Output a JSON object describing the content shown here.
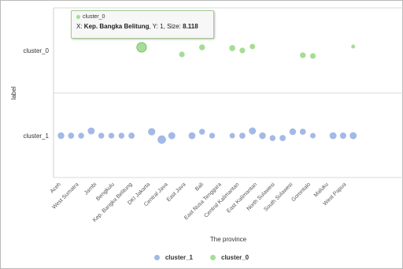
{
  "chart_data": {
    "type": "scatter",
    "xlabel": "The province",
    "ylabel": "label",
    "categories": [
      "Aceh",
      "West Sumatra",
      "Jambi",
      "Bengkulu",
      "Kep. Bangka Belitung",
      "DKI Jakarta",
      "Central Java",
      "East Java",
      "Bali",
      "East Nusa Tenggara",
      "Central Kalimantan",
      "East Kalimantan",
      "North Sulawesi",
      "South Sulawesi",
      "Gorontalo",
      "Maluku",
      "West Papua"
    ],
    "y_categories": [
      "cluster_1",
      "cluster_0"
    ],
    "series": [
      {
        "name": "cluster_1",
        "color": "#a3b9e6",
        "points": [
          [
            0,
            5.6
          ],
          [
            1,
            5.2
          ],
          [
            2,
            5.0
          ],
          [
            3,
            5.9
          ],
          [
            4,
            5.0
          ],
          [
            5,
            4.9
          ],
          [
            6,
            5.0
          ],
          [
            7,
            5.3
          ],
          [
            9,
            6.2
          ],
          [
            10,
            7.1
          ],
          [
            11,
            6.0
          ],
          [
            13,
            5.8
          ],
          [
            14,
            5.0
          ],
          [
            15,
            4.9
          ],
          [
            17,
            4.6
          ],
          [
            18,
            5.1
          ],
          [
            19,
            6.0
          ],
          [
            20,
            5.7
          ],
          [
            21,
            5.0
          ],
          [
            22,
            5.2
          ],
          [
            23,
            5.6
          ],
          [
            24,
            5.1
          ],
          [
            25,
            4.6
          ],
          [
            27,
            5.9
          ],
          [
            28,
            5.4
          ],
          [
            29,
            6.0
          ]
        ]
      },
      {
        "name": "cluster_0",
        "color": "#a5dd96",
        "points": [
          [
            8,
            8.118
          ],
          [
            12,
            4.8
          ],
          [
            14,
            5.0
          ],
          [
            17,
            5.1
          ],
          [
            18,
            4.8
          ],
          [
            19,
            4.6
          ],
          [
            24,
            4.9
          ],
          [
            25,
            4.8
          ],
          [
            29,
            3.4
          ]
        ]
      }
    ],
    "tooltip": {
      "series": "cluster_0",
      "x_label": "X",
      "x_value": "Kep. Bangka Belitung",
      "y_label": "Y",
      "y_value": "1",
      "size_label": "Size",
      "size_value": "8.118"
    },
    "legend": {
      "position": "bottom-center"
    },
    "grid": {
      "y": true,
      "x": false
    }
  }
}
